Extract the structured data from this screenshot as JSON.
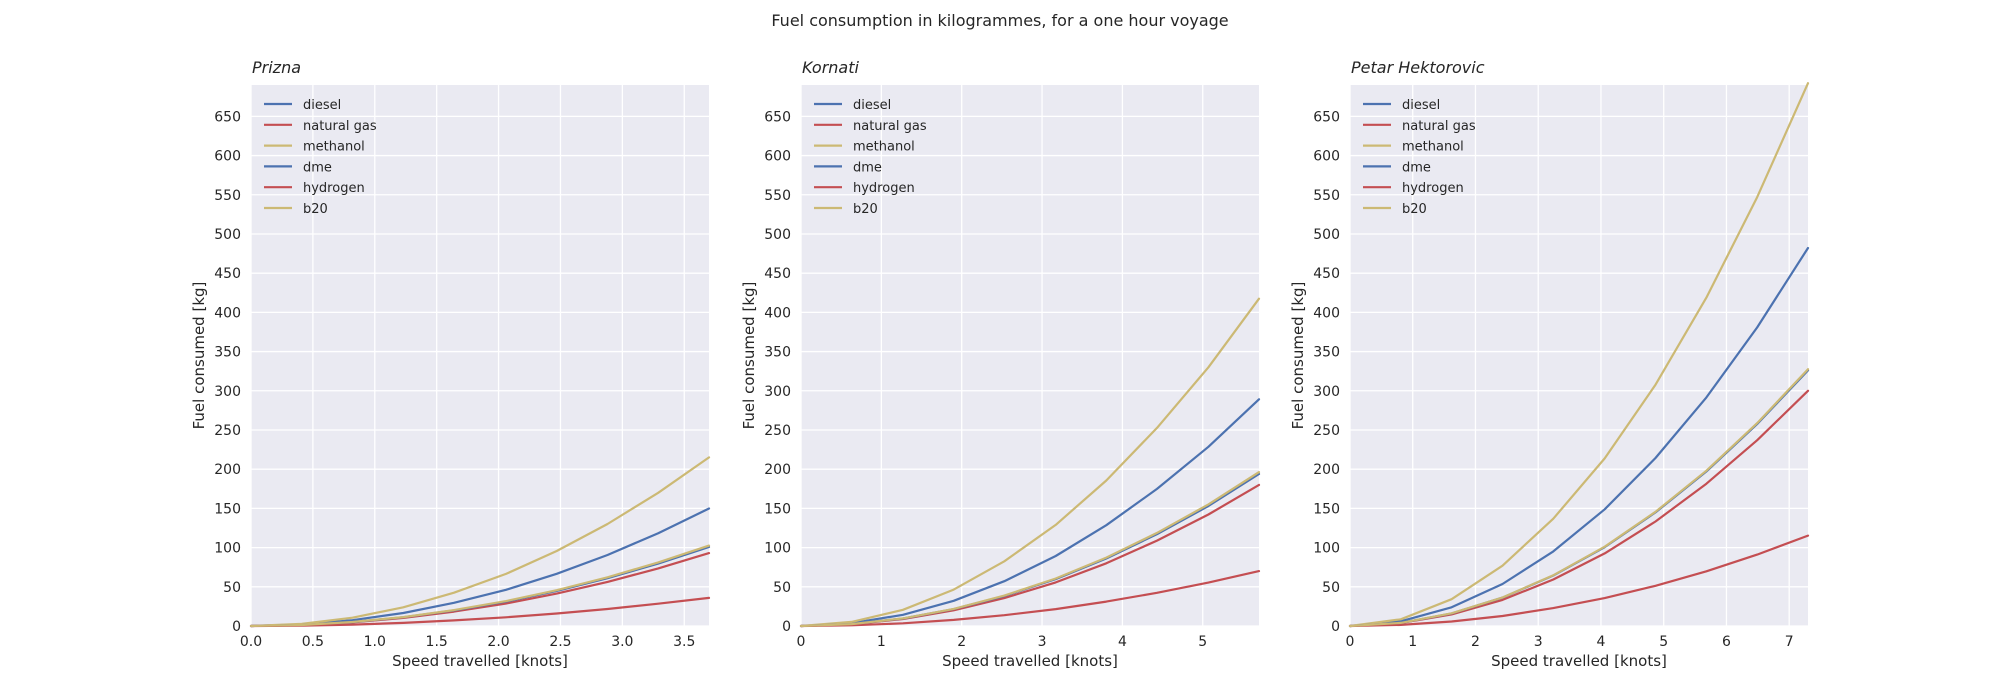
{
  "figure_title": "Fuel consumption in kilogrammes, for a one hour voyage",
  "colors": {
    "diesel": "#4c72b0",
    "natural gas": "#c44e52",
    "methanol": "#ccb974",
    "dme": "#4c72b0",
    "hydrogen": "#c44e52",
    "b20": "#ccb974"
  },
  "chart_data": [
    {
      "type": "line",
      "title": "Prizna",
      "xlabel": "Speed travelled [knots]",
      "ylabel": "Fuel consumed [kg]",
      "xlim": [
        0,
        3.7
      ],
      "ylim": [
        0,
        690
      ],
      "xticks": [
        0.0,
        0.5,
        1.0,
        1.5,
        2.0,
        2.5,
        3.0,
        3.5
      ],
      "xtick_labels": [
        "0.0",
        "0.5",
        "1.0",
        "1.5",
        "2.0",
        "2.5",
        "3.0",
        "3.5"
      ],
      "yticks": [
        0,
        50,
        100,
        150,
        200,
        250,
        300,
        350,
        400,
        450,
        500,
        550,
        600,
        650
      ],
      "ytick_labels": [
        "0",
        "50",
        "100",
        "150",
        "200",
        "250",
        "300",
        "350",
        "400",
        "450",
        "500",
        "550",
        "600",
        "650"
      ],
      "grid": true,
      "legend_position": "top-left",
      "x": [
        0,
        0.41,
        0.82,
        1.23,
        1.64,
        2.06,
        2.47,
        2.88,
        3.29,
        3.7
      ],
      "series": [
        {
          "name": "diesel",
          "values": [
            0,
            1.9,
            7.4,
            16.6,
            29.6,
            46.2,
            66.6,
            90.6,
            118.3,
            149.8
          ]
        },
        {
          "name": "natural gas",
          "values": [
            0,
            1.1,
            4.6,
            10.3,
            18.4,
            28.7,
            41.3,
            56.2,
            73.5,
            93.0
          ]
        },
        {
          "name": "methanol",
          "values": [
            0,
            2.7,
            10.6,
            23.9,
            42.5,
            66.4,
            95.6,
            130.1,
            169.9,
            215.0
          ]
        },
        {
          "name": "dme",
          "values": [
            0,
            1.2,
            5.0,
            11.2,
            19.9,
            31.1,
            44.8,
            61.0,
            79.6,
            100.8
          ]
        },
        {
          "name": "hydrogen",
          "values": [
            0,
            0.4,
            1.8,
            4.0,
            7.1,
            11.1,
            16.0,
            21.7,
            28.4,
            35.9
          ]
        },
        {
          "name": "b20",
          "values": [
            0,
            1.3,
            5.1,
            11.4,
            20.3,
            31.7,
            45.6,
            62.1,
            81.1,
            102.6
          ]
        }
      ]
    },
    {
      "type": "line",
      "title": "Kornati",
      "xlabel": "Speed travelled [knots]",
      "ylabel": "Fuel consumed [kg]",
      "xlim": [
        0,
        5.7
      ],
      "ylim": [
        0,
        690
      ],
      "xticks": [
        0,
        1,
        2,
        3,
        4,
        5
      ],
      "xtick_labels": [
        "0",
        "1",
        "2",
        "3",
        "4",
        "5"
      ],
      "yticks": [
        0,
        50,
        100,
        150,
        200,
        250,
        300,
        350,
        400,
        450,
        500,
        550,
        600,
        650
      ],
      "ytick_labels": [
        "0",
        "50",
        "100",
        "150",
        "200",
        "250",
        "300",
        "350",
        "400",
        "450",
        "500",
        "550",
        "600",
        "650"
      ],
      "grid": true,
      "legend_position": "top-left",
      "x": [
        0,
        0.63,
        1.27,
        1.9,
        2.53,
        3.17,
        3.8,
        4.43,
        5.07,
        5.7
      ],
      "series": [
        {
          "name": "diesel",
          "values": [
            0,
            3.6,
            14.3,
            32.1,
            57.1,
            89.3,
            128.5,
            174.9,
            228.5,
            289.1
          ]
        },
        {
          "name": "natural gas",
          "values": [
            0,
            2.2,
            8.9,
            20.0,
            35.6,
            55.6,
            80.0,
            108.9,
            142.2,
            180.0
          ]
        },
        {
          "name": "methanol",
          "values": [
            0,
            5.2,
            20.6,
            46.4,
            82.5,
            128.9,
            185.6,
            252.6,
            329.9,
            417.5
          ]
        },
        {
          "name": "dme",
          "values": [
            0,
            2.4,
            9.6,
            21.5,
            38.3,
            59.8,
            86.1,
            117.2,
            153.1,
            193.8
          ]
        },
        {
          "name": "hydrogen",
          "values": [
            0,
            0.9,
            3.5,
            7.8,
            13.8,
            21.6,
            31.1,
            42.3,
            55.3,
            70.0
          ]
        },
        {
          "name": "b20",
          "values": [
            0,
            2.4,
            9.7,
            21.8,
            38.8,
            60.6,
            87.2,
            118.7,
            155.1,
            196.3
          ]
        }
      ]
    },
    {
      "type": "line",
      "title": "Petar Hektorovic",
      "xlabel": "Speed travelled [knots]",
      "ylabel": "Fuel consumed [kg]",
      "xlim": [
        0,
        7.3
      ],
      "ylim": [
        0,
        690
      ],
      "xticks": [
        0,
        1,
        2,
        3,
        4,
        5,
        6,
        7
      ],
      "xtick_labels": [
        "0",
        "1",
        "2",
        "3",
        "4",
        "5",
        "6",
        "7"
      ],
      "yticks": [
        0,
        50,
        100,
        150,
        200,
        250,
        300,
        350,
        400,
        450,
        500,
        550,
        600,
        650
      ],
      "ytick_labels": [
        "0",
        "50",
        "100",
        "150",
        "200",
        "250",
        "300",
        "350",
        "400",
        "450",
        "500",
        "550",
        "600",
        "650"
      ],
      "grid": true,
      "legend_position": "top-left",
      "x": [
        0,
        0.81,
        1.62,
        2.43,
        3.24,
        4.06,
        4.87,
        5.68,
        6.49,
        7.3
      ],
      "series": [
        {
          "name": "diesel",
          "values": [
            0,
            6.0,
            23.8,
            53.6,
            95.2,
            148.8,
            214.3,
            291.6,
            380.9,
            482.1
          ]
        },
        {
          "name": "natural gas",
          "values": [
            0,
            3.7,
            14.8,
            33.3,
            59.3,
            92.6,
            133.3,
            181.5,
            237.0,
            300.0
          ]
        },
        {
          "name": "methanol",
          "values": [
            0,
            8.5,
            34.2,
            76.9,
            136.8,
            213.7,
            307.7,
            418.8,
            547.0,
            692.3
          ]
        },
        {
          "name": "dme",
          "values": [
            0,
            4.0,
            16.1,
            36.2,
            64.4,
            100.6,
            144.9,
            197.2,
            257.6,
            326.0
          ]
        },
        {
          "name": "hydrogen",
          "values": [
            0,
            1.4,
            5.7,
            12.8,
            22.8,
            35.6,
            51.3,
            69.8,
            91.1,
            115.3
          ]
        },
        {
          "name": "b20",
          "values": [
            0,
            4.0,
            16.2,
            36.4,
            64.7,
            101.1,
            145.6,
            198.1,
            258.8,
            327.5
          ]
        }
      ]
    }
  ]
}
